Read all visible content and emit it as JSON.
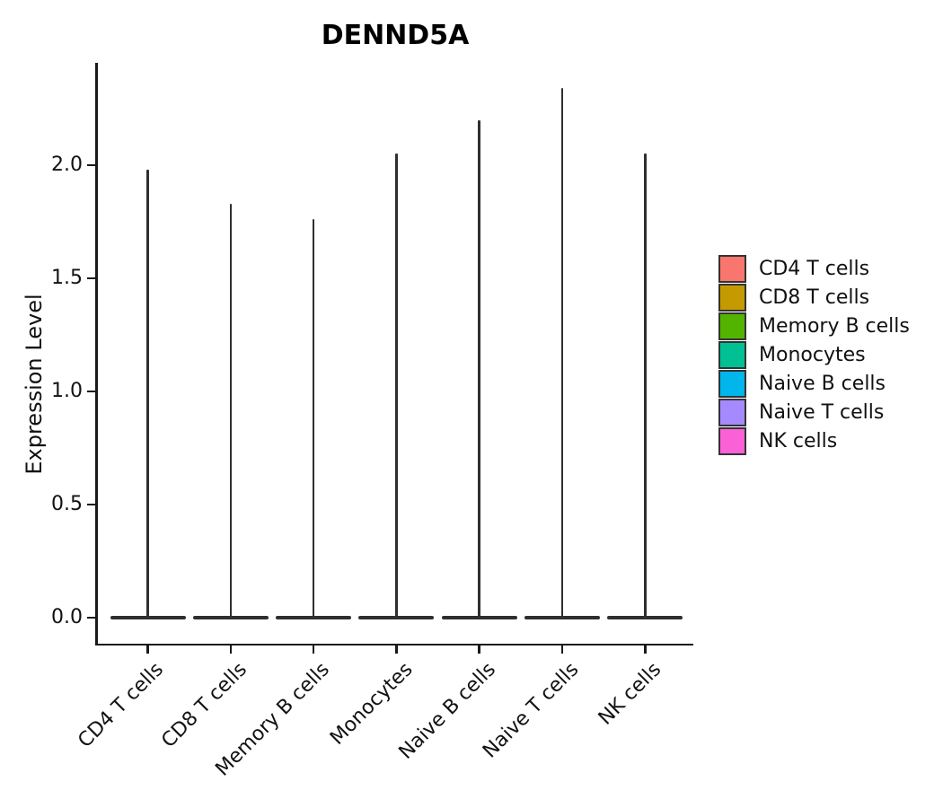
{
  "title": "DENND5A",
  "y_axis": {
    "label": "Expression Level",
    "tick_labels": [
      "0.0",
      "0.5",
      "1.0",
      "1.5",
      "2.0"
    ]
  },
  "legend": {
    "items": [
      {
        "label": "CD4 T cells",
        "color": "#F8766D"
      },
      {
        "label": "CD8 T cells",
        "color": "#C49A00"
      },
      {
        "label": "Memory B cells",
        "color": "#53B400"
      },
      {
        "label": "Monocytes",
        "color": "#00C094"
      },
      {
        "label": "Naive B cells",
        "color": "#00B6EB"
      },
      {
        "label": "Naive T cells",
        "color": "#A58AFF"
      },
      {
        "label": "NK cells",
        "color": "#FB61D7"
      }
    ]
  },
  "chart_data": {
    "type": "violin",
    "title": "DENND5A",
    "ylabel": "Expression Level",
    "categories": [
      "CD4 T cells",
      "CD8 T cells",
      "Memory B cells",
      "Monocytes",
      "Naive B cells",
      "Naive T cells",
      "NK cells"
    ],
    "colors": [
      "#F8766D",
      "#C49A00",
      "#53B400",
      "#00C094",
      "#00B6EB",
      "#A58AFF",
      "#FB61D7"
    ],
    "series": [
      {
        "name": "peak_expression",
        "values": [
          1.98,
          1.83,
          1.76,
          2.05,
          2.2,
          2.34,
          2.05
        ]
      },
      {
        "name": "density_bulk_at",
        "values": [
          0.0,
          0.0,
          0.0,
          0.0,
          0.0,
          0.0,
          0.0
        ]
      }
    ],
    "yticks": [
      0.0,
      0.5,
      1.0,
      1.5,
      2.0
    ],
    "ylim": [
      0,
      2.45
    ],
    "x_tick_rotation_deg": 45,
    "grid": false,
    "legend_position": "right",
    "violin_shape_note": "narrow spike violins with flat wide base at 0"
  }
}
